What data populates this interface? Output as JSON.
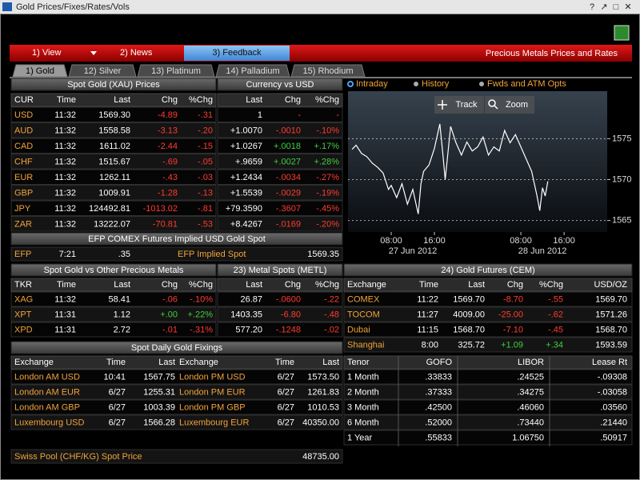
{
  "window": {
    "title": "Gold Prices/Fixes/Rates/Vols",
    "controls": [
      "?",
      "↗",
      "□",
      "✕"
    ]
  },
  "menu": {
    "items": [
      "1) View",
      "2) News",
      "3) Feedback"
    ],
    "heading": "Precious Metals Prices and Rates"
  },
  "tabs": [
    "1) Gold",
    "12) Silver",
    "13) Platinum",
    "14) Palladium",
    "15) Rhodium"
  ],
  "spot_gold": {
    "title": "Spot Gold (XAU) Prices",
    "columns": [
      "CUR",
      "Time",
      "Last",
      "Chg",
      "%Chg"
    ],
    "rows": [
      [
        "USD",
        "11:32",
        "1569.30",
        "-4.89",
        "-.31"
      ],
      [
        "AUD",
        "11:32",
        "1558.58",
        "-3.13",
        "-.20"
      ],
      [
        "CAD",
        "11:32",
        "1611.02",
        "-2.44",
        "-.15"
      ],
      [
        "CHF",
        "11:32",
        "1515.67",
        "-.69",
        "-.05"
      ],
      [
        "EUR",
        "11:32",
        "1262.11",
        "-.43",
        "-.03"
      ],
      [
        "GBP",
        "11:32",
        "1009.91",
        "-1.28",
        "-.13"
      ],
      [
        "JPY",
        "11:32",
        "124492.81",
        "-1013.02",
        "-.81"
      ],
      [
        "ZAR",
        "11:32",
        "13222.07",
        "-70.81",
        "-.53"
      ]
    ]
  },
  "currency": {
    "title": "Currency vs USD",
    "columns": [
      "Last",
      "Chg",
      "%Chg"
    ],
    "rows": [
      [
        "1",
        "-",
        "-"
      ],
      [
        "+1.0070",
        "-.0010",
        "-.10%"
      ],
      [
        "+1.0267",
        "+.0018",
        "+.17%"
      ],
      [
        "+.9659",
        "+.0027",
        "+.28%"
      ],
      [
        "+1.2434",
        "-.0034",
        "-.27%"
      ],
      [
        "+1.5539",
        "-.0029",
        "-.19%"
      ],
      [
        "+79.3590",
        "-.3607",
        "-.45%"
      ],
      [
        "+8.4267",
        "-.0169",
        "-.20%"
      ]
    ]
  },
  "efp": {
    "title": "EFP COMEX Futures Implied USD Gold Spot",
    "row": [
      "EFP",
      "7:21",
      ".35",
      "EFP Implied Spot",
      "1569.35"
    ]
  },
  "other_metals": {
    "title": "Spot Gold vs Other Precious Metals",
    "columns": [
      "TKR",
      "Time",
      "Last",
      "Chg",
      "%Chg"
    ],
    "rows": [
      [
        "XAG",
        "11:32",
        "58.41",
        "-.06",
        "-.10%"
      ],
      [
        "XPT",
        "11:31",
        "1.12",
        "+.00",
        "+.22%"
      ],
      [
        "XPD",
        "11:31",
        "2.72",
        "-.01",
        "-.31%"
      ]
    ]
  },
  "metal_spots": {
    "title": "23) Metal Spots (METL)",
    "columns": [
      "Last",
      "Chg",
      "%Chg"
    ],
    "rows": [
      [
        "26.87",
        "-.0600",
        "-.22"
      ],
      [
        "1403.35",
        "-6.80",
        "-.48"
      ],
      [
        "577.20",
        "-.1248",
        "-.02"
      ]
    ]
  },
  "futures": {
    "title": "24) Gold Futures (CEM)",
    "columns": [
      "Exchange",
      "Time",
      "Last",
      "Chg",
      "%Chg",
      "USD/OZ"
    ],
    "rows": [
      [
        "COMEX",
        "11:22",
        "1569.70",
        "-8.70",
        "-.55",
        "1569.70"
      ],
      [
        "TOCOM",
        "11:27",
        "4009.00",
        "-25.00",
        "-.62",
        "1571.26"
      ],
      [
        "Dubai",
        "11:15",
        "1568.70",
        "-7.10",
        "-.45",
        "1568.70"
      ],
      [
        "Shanghai",
        "8:00",
        "325.72",
        "+1.09",
        "+.34",
        "1593.59"
      ]
    ]
  },
  "fixings": {
    "title": "Spot Daily Gold Fixings",
    "columns": [
      "Exchange",
      "Time",
      "Last",
      "Exchange",
      "Time",
      "Last"
    ],
    "rows": [
      [
        "London AM USD",
        "10:41",
        "1567.75",
        "London PM USD",
        "6/27",
        "1573.50"
      ],
      [
        "London AM EUR",
        "6/27",
        "1255.31",
        "London PM EUR",
        "6/27",
        "1261.83"
      ],
      [
        "London AM GBP",
        "6/27",
        "1003.39",
        "London PM GBP",
        "6/27",
        "1010.53"
      ],
      [
        "Luxembourg USD",
        "6/27",
        "1566.28",
        "Luxembourg EUR",
        "6/27",
        "40350.00"
      ]
    ],
    "footer": [
      "Swiss Pool (CHF/KG) Spot Price",
      "48735.00"
    ]
  },
  "rates": {
    "columns": [
      "Tenor",
      "GOFO",
      "LIBOR",
      "Lease Rt"
    ],
    "rows": [
      [
        "1 Month",
        ".33833",
        ".24525",
        "-.09308"
      ],
      [
        "2 Month",
        ".37333",
        ".34275",
        "-.03058"
      ],
      [
        "3 Month",
        ".42500",
        ".46060",
        ".03560"
      ],
      [
        "6 Month",
        ".52000",
        ".73440",
        ".21440"
      ],
      [
        "1 Year",
        ".55833",
        "1.06750",
        ".50917"
      ]
    ]
  },
  "chart_data": {
    "type": "line",
    "tabs": [
      "Intraday",
      "History",
      "Fwds and ATM Opts"
    ],
    "buttons": [
      "Track",
      "Zoom"
    ],
    "x": [
      "27 Jun 2012 00:45",
      "27 Jun 2012 01:30",
      "27 Jun 2012 02:30",
      "27 Jun 2012 03:30",
      "27 Jun 2012 04:30",
      "27 Jun 2012 05:30",
      "27 Jun 2012 06:30",
      "27 Jun 2012 07:30",
      "27 Jun 2012 08:00",
      "27 Jun 2012 09:00",
      "27 Jun 2012 10:00",
      "27 Jun 2012 11:00",
      "27 Jun 2012 12:00",
      "27 Jun 2012 13:00",
      "27 Jun 2012 13:30",
      "27 Jun 2012 14:00",
      "27 Jun 2012 15:00",
      "27 Jun 2012 16:00",
      "27 Jun 2012 17:00",
      "27 Jun 2012 17:30",
      "27 Jun 2012 18:00",
      "27 Jun 2012 19:00",
      "27 Jun 2012 20:00",
      "27 Jun 2012 21:00",
      "27 Jun 2012 22:00",
      "27 Jun 2012 23:00",
      "28 Jun 2012 00:00",
      "28 Jun 2012 01:00",
      "28 Jun 2012 02:00",
      "28 Jun 2012 03:00",
      "28 Jun 2012 04:00",
      "28 Jun 2012 05:00",
      "28 Jun 2012 06:00",
      "28 Jun 2012 07:00",
      "28 Jun 2012 08:00",
      "28 Jun 2012 09:00",
      "28 Jun 2012 10:00",
      "28 Jun 2012 11:00",
      "28 Jun 2012 11:30",
      "28 Jun 2012 12:00",
      "28 Jun 2012 12:30",
      "28 Jun 2012 13:00"
    ],
    "values": [
      1573.7,
      1574.2,
      1573.2,
      1572.8,
      1572.0,
      1571.5,
      1570.8,
      1568.8,
      1569.3,
      1567.8,
      1569.5,
      1567.0,
      1568.8,
      1565.8,
      1569.5,
      1571.0,
      1571.8,
      1573.8,
      1576.8,
      1573.5,
      1570.0,
      1576.5,
      1574.5,
      1573.0,
      1574.6,
      1573.5,
      1574.0,
      1575.2,
      1573.0,
      1574.0,
      1573.5,
      1576.0,
      1574.5,
      1575.5,
      1574.0,
      1572.5,
      1571.0,
      1568.0,
      1566.2,
      1569.0,
      1568.0,
      1569.8
    ],
    "color": "#ffffff",
    "grid": true,
    "xlim": [
      "27 Jun 2012 00:00",
      "28 Jun 2012 23:59"
    ],
    "xticks": [
      {
        "value": "27 Jun 2012 08:00",
        "label": "08:00"
      },
      {
        "value": "27 Jun 2012 16:00",
        "label": "16:00"
      },
      {
        "value": "28 Jun 2012 08:00",
        "label": "08:00"
      },
      {
        "value": "28 Jun 2012 16:00",
        "label": "16:00"
      }
    ],
    "date_labels": [
      {
        "value": "27 Jun 2012 12:00",
        "label": "27 Jun 2012"
      },
      {
        "value": "28 Jun 2012 12:00",
        "label": "28 Jun 2012"
      }
    ],
    "ylim": [
      1563.6,
      1580.8
    ],
    "yticks": [
      1565,
      1570,
      1575
    ]
  }
}
